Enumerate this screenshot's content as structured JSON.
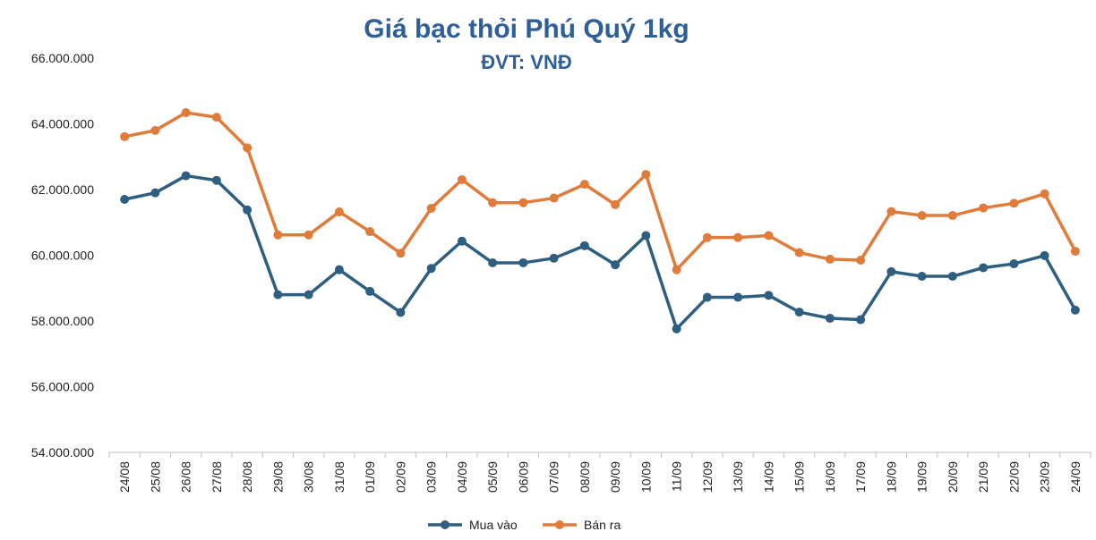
{
  "chart_data": {
    "type": "line",
    "title": "Giá bạc thỏi Phú Quý 1kg",
    "subtitle": "ĐVT: VNĐ",
    "ylim": [
      54000000,
      66000000
    ],
    "yticks": [
      54000000,
      56000000,
      58000000,
      60000000,
      62000000,
      64000000,
      66000000
    ],
    "ytick_labels": [
      "54.000.000",
      "56.000.000",
      "58.000.000",
      "60.000.000",
      "62.000.000",
      "64.000.000",
      "66.000.000"
    ],
    "grid": false,
    "legend": "bottom",
    "categories": [
      "24/08",
      "25/08",
      "26/08",
      "27/08",
      "28/08",
      "29/08",
      "30/08",
      "31/08",
      "01/09",
      "02/09",
      "03/09",
      "04/09",
      "05/09",
      "06/09",
      "07/09",
      "08/09",
      "09/09",
      "10/09",
      "11/09",
      "12/09",
      "13/09",
      "14/09",
      "15/09",
      "16/09",
      "17/09",
      "18/09",
      "19/09",
      "20/09",
      "21/09",
      "22/09",
      "23/09",
      "24/09"
    ],
    "series": [
      {
        "name": "Mua vào",
        "color": "#2e5f80",
        "values": [
          61700000,
          61900000,
          62420000,
          62280000,
          61380000,
          58800000,
          58800000,
          59560000,
          58900000,
          58260000,
          59600000,
          60430000,
          59770000,
          59770000,
          59910000,
          60290000,
          59710000,
          60600000,
          57760000,
          58720000,
          58720000,
          58780000,
          58270000,
          58080000,
          58040000,
          59500000,
          59360000,
          59360000,
          59620000,
          59740000,
          59990000,
          58330000
        ]
      },
      {
        "name": "Bán ra",
        "color": "#e07b39",
        "values": [
          63610000,
          63800000,
          64340000,
          64200000,
          63270000,
          60620000,
          60620000,
          61320000,
          60720000,
          60060000,
          61430000,
          62300000,
          61600000,
          61600000,
          61740000,
          62160000,
          61540000,
          62460000,
          59560000,
          60540000,
          60540000,
          60600000,
          60080000,
          59880000,
          59850000,
          61330000,
          61210000,
          61210000,
          61440000,
          61580000,
          61870000,
          60120000
        ]
      }
    ]
  }
}
